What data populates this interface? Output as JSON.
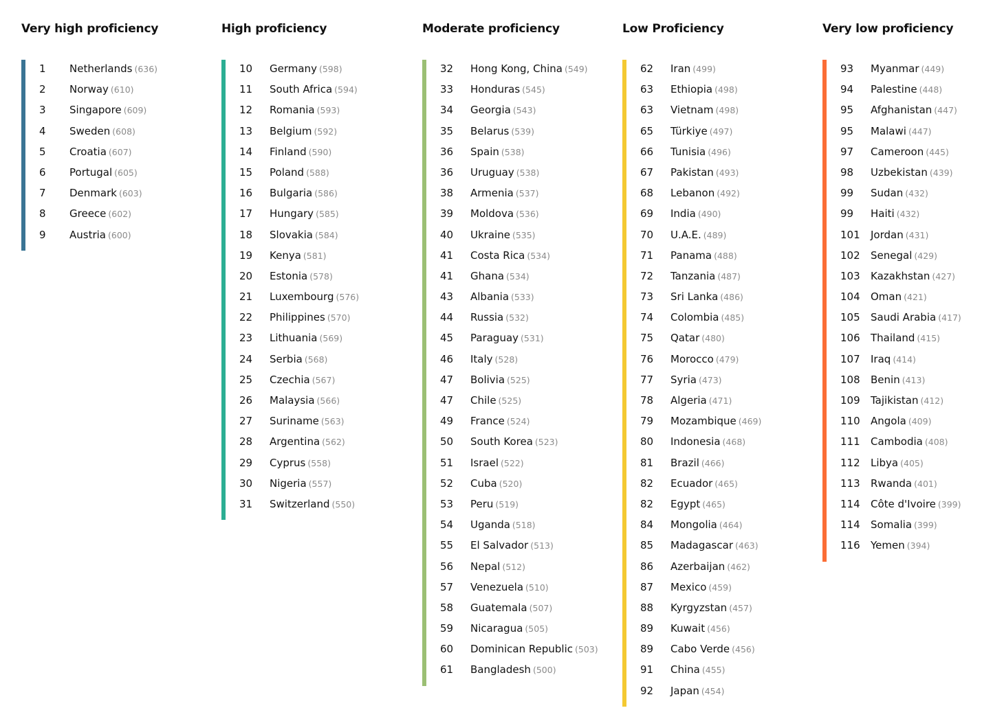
{
  "chart_data": {
    "type": "table",
    "title": "",
    "bands": [
      {
        "label": "Very high proficiency",
        "color": "#3a7494",
        "entries": [
          {
            "rank": "1",
            "country": "Netherlands",
            "score": 636
          },
          {
            "rank": "2",
            "country": "Norway",
            "score": 610
          },
          {
            "rank": "3",
            "country": "Singapore",
            "score": 609
          },
          {
            "rank": "4",
            "country": "Sweden",
            "score": 608
          },
          {
            "rank": "5",
            "country": "Croatia",
            "score": 607
          },
          {
            "rank": "6",
            "country": "Portugal",
            "score": 605
          },
          {
            "rank": "7",
            "country": "Denmark",
            "score": 603
          },
          {
            "rank": "8",
            "country": "Greece",
            "score": 602
          },
          {
            "rank": "9",
            "country": "Austria",
            "score": 600
          }
        ]
      },
      {
        "label": "High proficiency",
        "color": "#2bae93",
        "entries": [
          {
            "rank": "10",
            "country": "Germany",
            "score": 598
          },
          {
            "rank": "11",
            "country": "South Africa",
            "score": 594
          },
          {
            "rank": "12",
            "country": "Romania",
            "score": 593
          },
          {
            "rank": "13",
            "country": "Belgium",
            "score": 592
          },
          {
            "rank": "14",
            "country": "Finland",
            "score": 590
          },
          {
            "rank": "15",
            "country": "Poland",
            "score": 588
          },
          {
            "rank": "16",
            "country": "Bulgaria",
            "score": 586
          },
          {
            "rank": "17",
            "country": "Hungary",
            "score": 585
          },
          {
            "rank": "18",
            "country": "Slovakia",
            "score": 584
          },
          {
            "rank": "19",
            "country": "Kenya",
            "score": 581
          },
          {
            "rank": "20",
            "country": "Estonia",
            "score": 578
          },
          {
            "rank": "21",
            "country": "Luxembourg",
            "score": 576
          },
          {
            "rank": "22",
            "country": "Philippines",
            "score": 570
          },
          {
            "rank": "23",
            "country": "Lithuania",
            "score": 569
          },
          {
            "rank": "24",
            "country": "Serbia",
            "score": 568
          },
          {
            "rank": "25",
            "country": "Czechia",
            "score": 567
          },
          {
            "rank": "26",
            "country": "Malaysia",
            "score": 566
          },
          {
            "rank": "27",
            "country": "Suriname",
            "score": 563
          },
          {
            "rank": "28",
            "country": "Argentina",
            "score": 562
          },
          {
            "rank": "29",
            "country": "Cyprus",
            "score": 558
          },
          {
            "rank": "30",
            "country": "Nigeria",
            "score": 557
          },
          {
            "rank": "31",
            "country": "Switzerland",
            "score": 550
          }
        ]
      },
      {
        "label": "Moderate proficiency",
        "color": "#9bbf74",
        "entries": [
          {
            "rank": "32",
            "country": "Hong Kong, China",
            "score": 549
          },
          {
            "rank": "33",
            "country": "Honduras",
            "score": 545
          },
          {
            "rank": "34",
            "country": "Georgia",
            "score": 543
          },
          {
            "rank": "35",
            "country": "Belarus",
            "score": 539
          },
          {
            "rank": "36",
            "country": "Spain",
            "score": 538
          },
          {
            "rank": "36",
            "country": "Uruguay",
            "score": 538
          },
          {
            "rank": "38",
            "country": "Armenia",
            "score": 537
          },
          {
            "rank": "39",
            "country": "Moldova",
            "score": 536
          },
          {
            "rank": "40",
            "country": "Ukraine",
            "score": 535
          },
          {
            "rank": "41",
            "country": "Costa Rica",
            "score": 534
          },
          {
            "rank": "41",
            "country": "Ghana",
            "score": 534
          },
          {
            "rank": "43",
            "country": "Albania",
            "score": 533
          },
          {
            "rank": "44",
            "country": "Russia",
            "score": 532
          },
          {
            "rank": "45",
            "country": "Paraguay",
            "score": 531
          },
          {
            "rank": "46",
            "country": "Italy",
            "score": 528
          },
          {
            "rank": "47",
            "country": "Bolivia",
            "score": 525
          },
          {
            "rank": "47",
            "country": "Chile",
            "score": 525
          },
          {
            "rank": "49",
            "country": "France",
            "score": 524
          },
          {
            "rank": "50",
            "country": "South Korea",
            "score": 523
          },
          {
            "rank": "51",
            "country": "Israel",
            "score": 522
          },
          {
            "rank": "52",
            "country": "Cuba",
            "score": 520
          },
          {
            "rank": "53",
            "country": "Peru",
            "score": 519
          },
          {
            "rank": "54",
            "country": "Uganda",
            "score": 518
          },
          {
            "rank": "55",
            "country": "El Salvador",
            "score": 513
          },
          {
            "rank": "56",
            "country": "Nepal",
            "score": 512
          },
          {
            "rank": "57",
            "country": "Venezuela",
            "score": 510
          },
          {
            "rank": "58",
            "country": "Guatemala",
            "score": 507
          },
          {
            "rank": "59",
            "country": "Nicaragua",
            "score": 505
          },
          {
            "rank": "60",
            "country": "Dominican Republic",
            "score": 503
          },
          {
            "rank": "61",
            "country": "Bangladesh",
            "score": 500
          }
        ]
      },
      {
        "label": "Low Proficiency",
        "color": "#f4c932",
        "entries": [
          {
            "rank": "62",
            "country": "Iran",
            "score": 499
          },
          {
            "rank": "63",
            "country": "Ethiopia",
            "score": 498
          },
          {
            "rank": "63",
            "country": "Vietnam",
            "score": 498
          },
          {
            "rank": "65",
            "country": "Türkiye",
            "score": 497
          },
          {
            "rank": "66",
            "country": "Tunisia",
            "score": 496
          },
          {
            "rank": "67",
            "country": "Pakistan",
            "score": 493
          },
          {
            "rank": "68",
            "country": "Lebanon",
            "score": 492
          },
          {
            "rank": "69",
            "country": "India",
            "score": 490
          },
          {
            "rank": "70",
            "country": "U.A.E.",
            "score": 489
          },
          {
            "rank": "71",
            "country": "Panama",
            "score": 488
          },
          {
            "rank": "72",
            "country": "Tanzania",
            "score": 487
          },
          {
            "rank": "73",
            "country": "Sri Lanka",
            "score": 486
          },
          {
            "rank": "74",
            "country": "Colombia",
            "score": 485
          },
          {
            "rank": "75",
            "country": "Qatar",
            "score": 480
          },
          {
            "rank": "76",
            "country": "Morocco",
            "score": 479
          },
          {
            "rank": "77",
            "country": "Syria",
            "score": 473
          },
          {
            "rank": "78",
            "country": "Algeria",
            "score": 471
          },
          {
            "rank": "79",
            "country": "Mozambique",
            "score": 469
          },
          {
            "rank": "80",
            "country": "Indonesia",
            "score": 468
          },
          {
            "rank": "81",
            "country": "Brazil",
            "score": 466
          },
          {
            "rank": "82",
            "country": "Ecuador",
            "score": 465
          },
          {
            "rank": "82",
            "country": "Egypt",
            "score": 465
          },
          {
            "rank": "84",
            "country": "Mongolia",
            "score": 464
          },
          {
            "rank": "85",
            "country": "Madagascar",
            "score": 463
          },
          {
            "rank": "86",
            "country": "Azerbaijan",
            "score": 462
          },
          {
            "rank": "87",
            "country": "Mexico",
            "score": 459
          },
          {
            "rank": "88",
            "country": "Kyrgyzstan",
            "score": 457
          },
          {
            "rank": "89",
            "country": "Kuwait",
            "score": 456
          },
          {
            "rank": "89",
            "country": "Cabo Verde",
            "score": 456
          },
          {
            "rank": "91",
            "country": "China",
            "score": 455
          },
          {
            "rank": "92",
            "country": "Japan",
            "score": 454
          }
        ]
      },
      {
        "label": "Very low proficiency",
        "color": "#fb6d36",
        "entries": [
          {
            "rank": "93",
            "country": "Myanmar",
            "score": 449
          },
          {
            "rank": "94",
            "country": "Palestine",
            "score": 448
          },
          {
            "rank": "95",
            "country": "Afghanistan",
            "score": 447
          },
          {
            "rank": "95",
            "country": "Malawi",
            "score": 447
          },
          {
            "rank": "97",
            "country": "Cameroon",
            "score": 445
          },
          {
            "rank": "98",
            "country": "Uzbekistan",
            "score": 439
          },
          {
            "rank": "99",
            "country": "Sudan",
            "score": 432
          },
          {
            "rank": "99",
            "country": "Haiti",
            "score": 432
          },
          {
            "rank": "101",
            "country": "Jordan",
            "score": 431
          },
          {
            "rank": "102",
            "country": "Senegal",
            "score": 429
          },
          {
            "rank": "103",
            "country": "Kazakhstan",
            "score": 427
          },
          {
            "rank": "104",
            "country": "Oman",
            "score": 421
          },
          {
            "rank": "105",
            "country": "Saudi Arabia",
            "score": 417
          },
          {
            "rank": "106",
            "country": "Thailand",
            "score": 415
          },
          {
            "rank": "107",
            "country": "Iraq",
            "score": 414
          },
          {
            "rank": "108",
            "country": "Benin",
            "score": 413
          },
          {
            "rank": "109",
            "country": "Tajikistan",
            "score": 412
          },
          {
            "rank": "110",
            "country": "Angola",
            "score": 409
          },
          {
            "rank": "111",
            "country": "Cambodia",
            "score": 408
          },
          {
            "rank": "112",
            "country": "Libya",
            "score": 405
          },
          {
            "rank": "113",
            "country": "Rwanda",
            "score": 401
          },
          {
            "rank": "114",
            "country": "Côte d'Ivoire",
            "score": 399
          },
          {
            "rank": "114",
            "country": "Somalia",
            "score": 399
          },
          {
            "rank": "116",
            "country": "Yemen",
            "score": 394
          }
        ]
      }
    ]
  }
}
